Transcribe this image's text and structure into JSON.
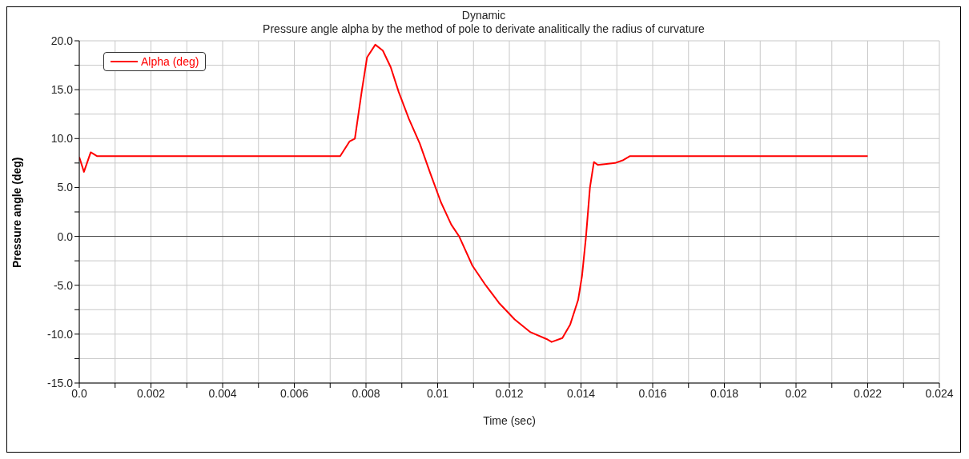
{
  "chart_data": {
    "type": "line",
    "title": "Dynamic",
    "subtitle": "Pressure angle alpha by the method of pole to derivate analitically the radius of curvature",
    "xlabel": "Time (sec)",
    "ylabel": "Pressure angle (deg)",
    "x": [
      0,
      0.00013,
      0.00032,
      0.0005,
      0.002,
      0.004,
      0.006,
      0.00728,
      0.00754,
      0.00769,
      0.00773,
      0.00788,
      0.00803,
      0.00826,
      0.00847,
      0.00869,
      0.00891,
      0.0092,
      0.0095,
      0.00979,
      0.01009,
      0.01038,
      0.0106,
      0.01097,
      0.01134,
      0.01171,
      0.01215,
      0.01259,
      0.01304,
      0.01318,
      0.01348,
      0.0137,
      0.01392,
      0.01403,
      0.01414,
      0.01425,
      0.01436,
      0.01447,
      0.01495,
      0.01518,
      0.01536,
      0.016,
      0.018,
      0.02,
      0.022
    ],
    "series": [
      {
        "name": "Alpha (deg)",
        "color": "#ff0000",
        "values": [
          8.1,
          6.6,
          8.6,
          8.2,
          8.2,
          8.2,
          8.2,
          8.2,
          9.7,
          10.0,
          11.0,
          14.8,
          18.3,
          19.6,
          19.0,
          17.3,
          14.8,
          12.0,
          9.5,
          6.5,
          3.5,
          1.2,
          0.0,
          -3.0,
          -5.0,
          -6.8,
          -8.5,
          -9.8,
          -10.5,
          -10.8,
          -10.4,
          -9.0,
          -6.5,
          -4.0,
          0.0,
          5.0,
          7.6,
          7.3,
          7.5,
          7.8,
          8.2,
          8.2,
          8.2,
          8.2,
          8.2
        ]
      }
    ],
    "xlim": [
      0,
      0.024
    ],
    "xticks": [
      {
        "value": 0,
        "label": "0.0"
      },
      {
        "value": 0.001,
        "label": null
      },
      {
        "value": 0.002,
        "label": "0.002"
      },
      {
        "value": 0.003,
        "label": null
      },
      {
        "value": 0.004,
        "label": "0.004"
      },
      {
        "value": 0.005,
        "label": null
      },
      {
        "value": 0.006,
        "label": "0.006"
      },
      {
        "value": 0.007,
        "label": null
      },
      {
        "value": 0.008,
        "label": "0.008"
      },
      {
        "value": 0.009,
        "label": null
      },
      {
        "value": 0.01,
        "label": "0.01"
      },
      {
        "value": 0.011,
        "label": null
      },
      {
        "value": 0.012,
        "label": "0.012"
      },
      {
        "value": 0.013,
        "label": null
      },
      {
        "value": 0.014,
        "label": "0.014"
      },
      {
        "value": 0.015,
        "label": null
      },
      {
        "value": 0.016,
        "label": "0.016"
      },
      {
        "value": 0.017,
        "label": null
      },
      {
        "value": 0.018,
        "label": "0.018"
      },
      {
        "value": 0.019,
        "label": null
      },
      {
        "value": 0.02,
        "label": "0.02"
      },
      {
        "value": 0.021,
        "label": null
      },
      {
        "value": 0.022,
        "label": "0.022"
      },
      {
        "value": 0.023,
        "label": null
      },
      {
        "value": 0.024,
        "label": "0.024"
      }
    ],
    "ylim": [
      -15,
      20
    ],
    "yticks": [
      {
        "value": -15,
        "label": "-15.0"
      },
      {
        "value": -12.5,
        "label": null
      },
      {
        "value": -10,
        "label": "-10.0"
      },
      {
        "value": -7.5,
        "label": null
      },
      {
        "value": -5,
        "label": "-5.0"
      },
      {
        "value": -2.5,
        "label": null
      },
      {
        "value": 0,
        "label": "0.0"
      },
      {
        "value": 2.5,
        "label": null
      },
      {
        "value": 5,
        "label": "5.0"
      },
      {
        "value": 7.5,
        "label": null
      },
      {
        "value": 10,
        "label": "10.0"
      },
      {
        "value": 12.5,
        "label": null
      },
      {
        "value": 15,
        "label": "15.0"
      },
      {
        "value": 17.5,
        "label": null
      },
      {
        "value": 20,
        "label": "20.0"
      }
    ],
    "ref_lines": [
      {
        "axis": "y",
        "value": 0,
        "label": null,
        "color": "#404040"
      }
    ],
    "grid": true,
    "legend": "top left",
    "marker": "none",
    "line_style": "solid"
  }
}
